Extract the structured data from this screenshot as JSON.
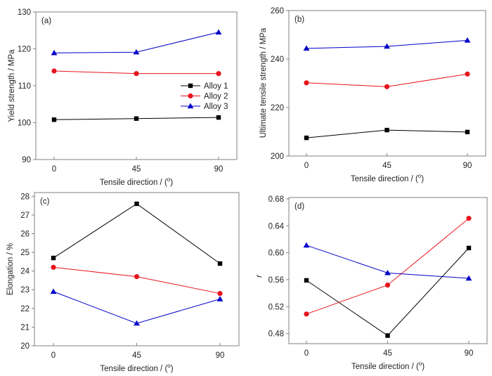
{
  "series_styles": [
    {
      "name": "Alloy 1",
      "color": "#000000",
      "marker": "square"
    },
    {
      "name": "Alloy 2",
      "color": "#e8141c",
      "marker": "circle"
    },
    {
      "name": "Alloy 3",
      "color": "#0000c8",
      "marker": "triangle"
    }
  ],
  "chart_data": [
    {
      "type": "line",
      "panel_label": "(a)",
      "title": "",
      "xlabel": "Tensile direction / (",
      "xlabel_sup": "o",
      "xlabel_end": ")",
      "ylabel": "Yield strength / MPa",
      "x": [
        0,
        45,
        90
      ],
      "xticks": [
        "0",
        "45",
        "90"
      ],
      "ylim": [
        90,
        130
      ],
      "yticks": [
        90,
        100,
        110,
        120,
        130
      ],
      "ytick_decimals": 0,
      "legend": {
        "show": true,
        "position": "center-right",
        "entries": [
          "Alloy 1",
          "Alloy 2",
          "Alloy 3"
        ]
      },
      "series": [
        {
          "name": "Alloy 1",
          "values": [
            100.8,
            101.1,
            101.4
          ]
        },
        {
          "name": "Alloy 2",
          "values": [
            114.0,
            113.3,
            113.3
          ]
        },
        {
          "name": "Alloy 3",
          "values": [
            118.9,
            119.1,
            124.5
          ]
        }
      ]
    },
    {
      "type": "line",
      "panel_label": "(b)",
      "title": "",
      "xlabel": "Tensile direction / (",
      "xlabel_sup": "o",
      "xlabel_end": ")",
      "ylabel": "Ultimate tensile strength / MPa",
      "x": [
        0,
        45,
        90
      ],
      "xticks": [
        "0",
        "45",
        "90"
      ],
      "ylim": [
        200,
        260
      ],
      "yticks": [
        200,
        220,
        240,
        260
      ],
      "ytick_decimals": 0,
      "legend": {
        "show": false
      },
      "series": [
        {
          "name": "Alloy 1",
          "values": [
            207.5,
            210.7,
            209.9
          ]
        },
        {
          "name": "Alloy 2",
          "values": [
            230.2,
            228.6,
            233.8
          ]
        },
        {
          "name": "Alloy 3",
          "values": [
            244.4,
            245.2,
            247.7
          ]
        }
      ]
    },
    {
      "type": "line",
      "panel_label": "(c)",
      "title": "",
      "xlabel": "Tensile direction / (",
      "xlabel_sup": "o",
      "xlabel_end": ")",
      "ylabel": "Elongation / %",
      "x": [
        0,
        45,
        90
      ],
      "xticks": [
        "0",
        "45",
        "90"
      ],
      "ylim": [
        20,
        28.2
      ],
      "yticks": [
        20,
        21,
        22,
        23,
        24,
        25,
        26,
        27,
        28
      ],
      "ytick_decimals": 0,
      "legend": {
        "show": false
      },
      "series": [
        {
          "name": "Alloy 1",
          "values": [
            24.7,
            27.6,
            24.4
          ]
        },
        {
          "name": "Alloy 2",
          "values": [
            24.2,
            23.7,
            22.8
          ]
        },
        {
          "name": "Alloy 3",
          "values": [
            22.9,
            21.2,
            22.5
          ]
        }
      ]
    },
    {
      "type": "line",
      "panel_label": "(d)",
      "title": "",
      "xlabel": "Tensile direction / (",
      "xlabel_sup": "o",
      "xlabel_end": ")",
      "ylabel": "r",
      "x": [
        0,
        45,
        90
      ],
      "xticks": [
        "0",
        "45",
        "90"
      ],
      "ylim": [
        0.465,
        0.682
      ],
      "yticks": [
        0.48,
        0.52,
        0.56,
        0.6,
        0.64,
        0.68
      ],
      "ytick_decimals": 2,
      "legend": {
        "show": false
      },
      "series": [
        {
          "name": "Alloy 1",
          "values": [
            0.559,
            0.477,
            0.607
          ]
        },
        {
          "name": "Alloy 2",
          "values": [
            0.509,
            0.552,
            0.651
          ]
        },
        {
          "name": "Alloy 3",
          "values": [
            0.611,
            0.57,
            0.562
          ]
        }
      ]
    }
  ]
}
